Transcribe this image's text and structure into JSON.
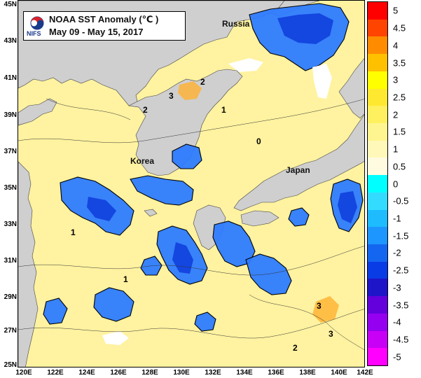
{
  "title": {
    "logo_text": "NIFS",
    "heading": "NOAA SST Anomaly (℃ )",
    "date_range": "May 09 - May 15, 2017"
  },
  "places": [
    {
      "name": "Russia"
    },
    {
      "name": "Korea"
    },
    {
      "name": "Japan"
    }
  ],
  "axes": {
    "lat_labels": [
      "45N",
      "43N",
      "41N",
      "39N",
      "37N",
      "35N",
      "33N",
      "31N",
      "29N",
      "27N",
      "25N"
    ],
    "lon_labels": [
      "120E",
      "122E",
      "124E",
      "126E",
      "128E",
      "130E",
      "132E",
      "134E",
      "136E",
      "138E",
      "140E",
      "142E"
    ]
  },
  "legend": {
    "labels": [
      "5",
      "4.5",
      "4",
      "3.5",
      "3",
      "2.5",
      "2",
      "1.5",
      "1",
      "0.5",
      "0",
      "-0.5",
      "-1",
      "-1.5",
      "-2",
      "-2.5",
      "-3",
      "-3.5",
      "-4",
      "-4.5",
      "-5"
    ],
    "colors": [
      "#ff0000",
      "#ff4400",
      "#ff8c00",
      "#ffc000",
      "#ffff00",
      "#ffe830",
      "#fff060",
      "#fff590",
      "#fff8b8",
      "#fffbe0",
      "#00ffff",
      "#33dcff",
      "#1ebcff",
      "#1e96ff",
      "#1466f0",
      "#0a3ce6",
      "#1e14c8",
      "#6400dc",
      "#9600f0",
      "#c800f5",
      "#ff00ff"
    ]
  },
  "contour_labels": [
    "3",
    "2",
    "1",
    "0",
    "3",
    "3",
    "2",
    "1",
    "2",
    "1"
  ],
  "colors": {
    "land": "#cfcfcf",
    "warm_sea": "#fff2a0",
    "cool_sea": "#2d7bff"
  }
}
